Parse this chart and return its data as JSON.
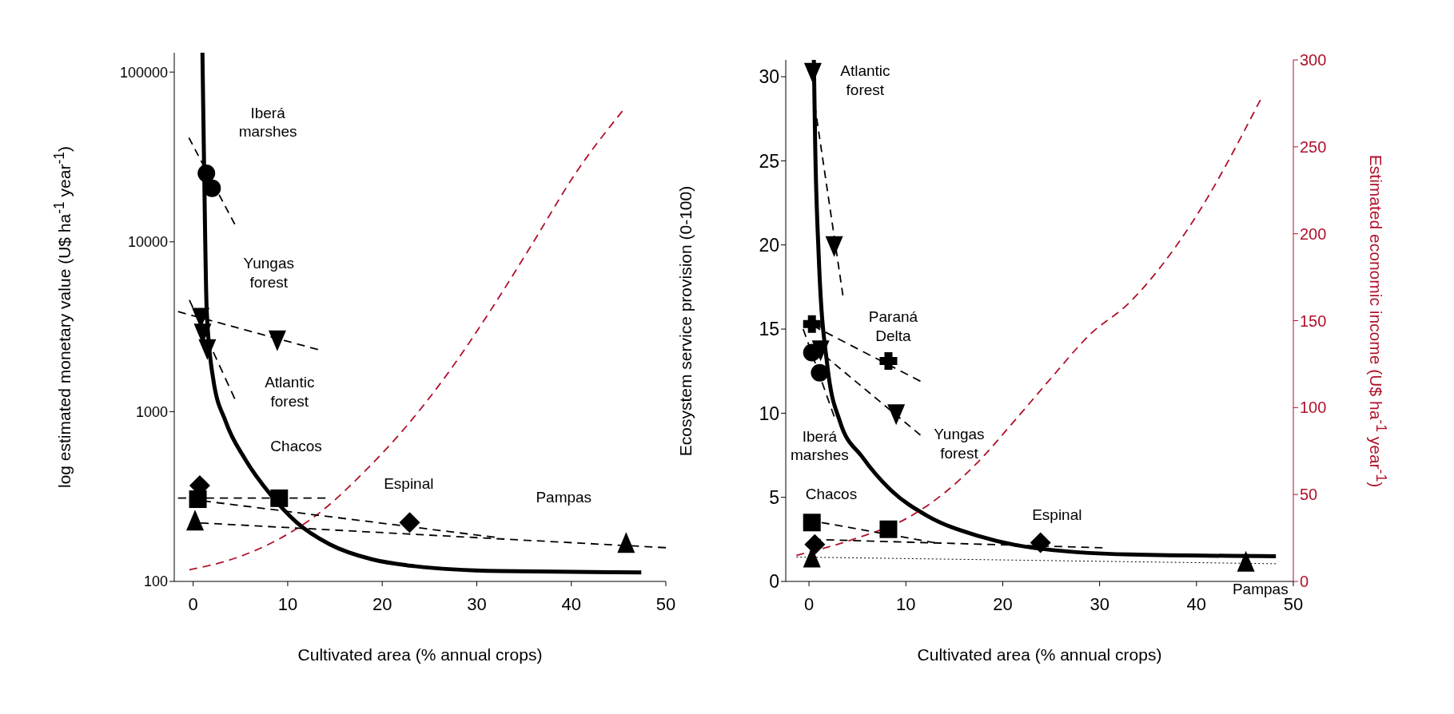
{
  "chart_data": [
    {
      "type": "scatter",
      "xlabel": "Cultivated area (% annual crops)",
      "ylabel": "log estimated monetary value (U$ ha$^{-1}$ year$^{-1}$)",
      "xlim": [
        -2,
        50
      ],
      "xticks": [
        0,
        10,
        20,
        30,
        40,
        50
      ],
      "ylim": [
        100,
        130000
      ],
      "yticks": [
        100,
        1000,
        10000,
        100000
      ],
      "log": "y",
      "series": [
        {
          "type": "line",
          "line_style": "solid",
          "color": "#000000",
          "x": [
            0.98,
            1.17,
            1.43,
            2.1,
            3.45,
            5.5,
            8.2,
            10.9,
            14.4,
            18.9,
            23.4,
            32.4,
            47.4
          ],
          "values": [
            130000,
            24800,
            3980,
            1585,
            871,
            525,
            324,
            224,
            166,
            135,
            123,
            115,
            113
          ]
        },
        {
          "type": "line",
          "line_style": "dashed",
          "color": "#b0102a",
          "x": [
            -0.4,
            4.6,
            9.1,
            13.5,
            18,
            22.5,
            27,
            31.5,
            36,
            40.4,
            45.4
          ],
          "values": [
            117,
            138,
            178,
            257,
            437,
            813,
            1700,
            3980,
            10000,
            25100,
            58900
          ]
        },
        {
          "type": "line",
          "line_style": "dashed",
          "color": "#000000",
          "x": [
            -0.45,
            4.4
          ],
          "values": [
            41000,
            12700
          ]
        },
        {
          "type": "line",
          "line_style": "dashed",
          "color": "#000000",
          "x": [
            -1.6,
            13.2
          ],
          "values": [
            3880,
            2320
          ]
        },
        {
          "type": "line",
          "line_style": "dashed",
          "color": "#000000",
          "x": [
            -0.4,
            4.4
          ],
          "values": [
            4550,
            1190
          ]
        },
        {
          "type": "line",
          "line_style": "dashed",
          "color": "#000000",
          "x": [
            -1.6,
            14
          ],
          "values": [
            310,
            310
          ]
        },
        {
          "type": "line",
          "line_style": "dashed",
          "color": "#000000",
          "x": [
            -0.4,
            31.9
          ],
          "values": [
            305,
            182
          ]
        },
        {
          "type": "line",
          "line_style": "dashed",
          "color": "#000000",
          "x": [
            0.8,
            50
          ],
          "values": [
            221,
            158
          ]
        },
        {
          "type": "scatter",
          "marker": "circle",
          "color": "#000000",
          "x": [
            1.4,
            2.0
          ],
          "values": [
            25300,
            20700
          ]
        },
        {
          "type": "scatter",
          "marker": "triangle-down",
          "color": "#000000",
          "x": [
            0.8,
            8.9
          ],
          "values": [
            3630,
            2670
          ]
        },
        {
          "type": "scatter",
          "marker": "triangle-down",
          "color": "#000000",
          "x": [
            1.0,
            1.5
          ],
          "values": [
            2930,
            2370
          ]
        },
        {
          "type": "scatter",
          "marker": "square",
          "color": "#000000",
          "x": [
            0.5,
            9.1
          ],
          "values": [
            305,
            309
          ]
        },
        {
          "type": "scatter",
          "marker": "diamond",
          "color": "#000000",
          "x": [
            0.7,
            22.9
          ],
          "values": [
            367,
            222
          ]
        },
        {
          "type": "scatter",
          "marker": "triangle",
          "color": "#000000",
          "x": [
            0.2,
            45.8
          ],
          "values": [
            225,
            166
          ]
        }
      ],
      "annotations": [
        "Iberá\nmarshes",
        "Yungas\nforest",
        "Atlantic\nforest",
        "Chacos",
        "Espinal",
        "Pampas"
      ]
    },
    {
      "type": "scatter",
      "xlabel": "Cultivated area (% annual crops)",
      "ylabel": "Ecosystem service provision (0-100)",
      "y2label": "Estimated economic income (U$ ha$^{-1}$ year$^{-1}$)",
      "xlim": [
        -2.4,
        50
      ],
      "xticks": [
        0,
        10,
        20,
        30,
        40,
        50
      ],
      "ylim": [
        0,
        31
      ],
      "yticks": [
        0,
        5,
        10,
        15,
        20,
        25,
        30
      ],
      "y2lim": [
        0,
        300
      ],
      "y2ticks": [
        0,
        50,
        100,
        150,
        200,
        250,
        300
      ],
      "series": [
        {
          "type": "line",
          "line_style": "solid",
          "color": "#000000",
          "x": [
            0.5,
            0.64,
            1.0,
            1.9,
            3.2,
            5.5,
            8.5,
            12.2,
            17.5,
            23.1,
            33.2,
            48.2
          ],
          "values": [
            31,
            25.9,
            19.4,
            12.8,
            9.5,
            7.4,
            5.4,
            3.9,
            2.7,
            2.0,
            1.6,
            1.5
          ]
        },
        {
          "type": "line",
          "line_style": "dashed",
          "axis": "y2",
          "color": "#b0102a",
          "x": [
            -1.3,
            5,
            10,
            14,
            17.5,
            21,
            25,
            29,
            33,
            39.5,
            46.6
          ],
          "values": [
            15,
            25,
            36,
            51,
            69,
            91,
            117,
            142,
            160,
            206,
            277
          ]
        },
        {
          "type": "line",
          "line_style": "dashed",
          "color": "#000000",
          "x": [
            0.6,
            3.5
          ],
          "values": [
            28.3,
            17
          ]
        },
        {
          "type": "line",
          "line_style": "dashed",
          "color": "#000000",
          "x": [
            0.4,
            11.5
          ],
          "values": [
            15.2,
            11.9
          ]
        },
        {
          "type": "line",
          "line_style": "dashed",
          "color": "#000000",
          "x": [
            -0.6,
            2.6
          ],
          "values": [
            15,
            9.8
          ]
        },
        {
          "type": "line",
          "line_style": "dashed",
          "color": "#000000",
          "x": [
            0.6,
            11.5
          ],
          "values": [
            13.9,
            8.7
          ]
        },
        {
          "type": "line",
          "line_style": "dashed",
          "color": "#000000",
          "x": [
            1.3,
            13
          ],
          "values": [
            3.5,
            2.3
          ]
        },
        {
          "type": "line",
          "line_style": "dashed",
          "color": "#000000",
          "x": [
            0.4,
            30.3
          ],
          "values": [
            2.5,
            2.0
          ]
        },
        {
          "type": "line",
          "line_style": "dotted",
          "color": "#000000",
          "x": [
            -1.3,
            48.2
          ],
          "values": [
            1.45,
            1.05
          ]
        },
        {
          "type": "scatter",
          "marker": "triangle-down",
          "color": "#000000",
          "x": [
            0.4,
            2.6
          ],
          "values": [
            30.3,
            20
          ]
        },
        {
          "type": "scatter",
          "marker": "cross",
          "color": "#000000",
          "x": [
            0.3,
            8.2
          ],
          "values": [
            15.3,
            13.1
          ]
        },
        {
          "type": "scatter",
          "marker": "circle",
          "color": "#000000",
          "x": [
            0.3,
            1.1
          ],
          "values": [
            13.6,
            12.4
          ]
        },
        {
          "type": "scatter",
          "marker": "triangle-down",
          "color": "#000000",
          "x": [
            1.2,
            9.0
          ],
          "values": [
            13.8,
            10.0
          ]
        },
        {
          "type": "scatter",
          "marker": "square",
          "color": "#000000",
          "x": [
            0.3,
            8.2
          ],
          "values": [
            3.5,
            3.1
          ]
        },
        {
          "type": "scatter",
          "marker": "diamond",
          "color": "#000000",
          "x": [
            0.6,
            23.9
          ],
          "values": [
            2.2,
            2.3
          ]
        },
        {
          "type": "scatter",
          "marker": "triangle",
          "color": "#000000",
          "x": [
            0.3,
            45.1
          ],
          "values": [
            1.35,
            1.1
          ]
        }
      ],
      "annotations": [
        "Atlantic\nforest",
        "Paraná\nDelta",
        "Iberá\nmarshes",
        "Yungas\nforest",
        "Chacos",
        "Espinal",
        "Pampas"
      ]
    }
  ]
}
